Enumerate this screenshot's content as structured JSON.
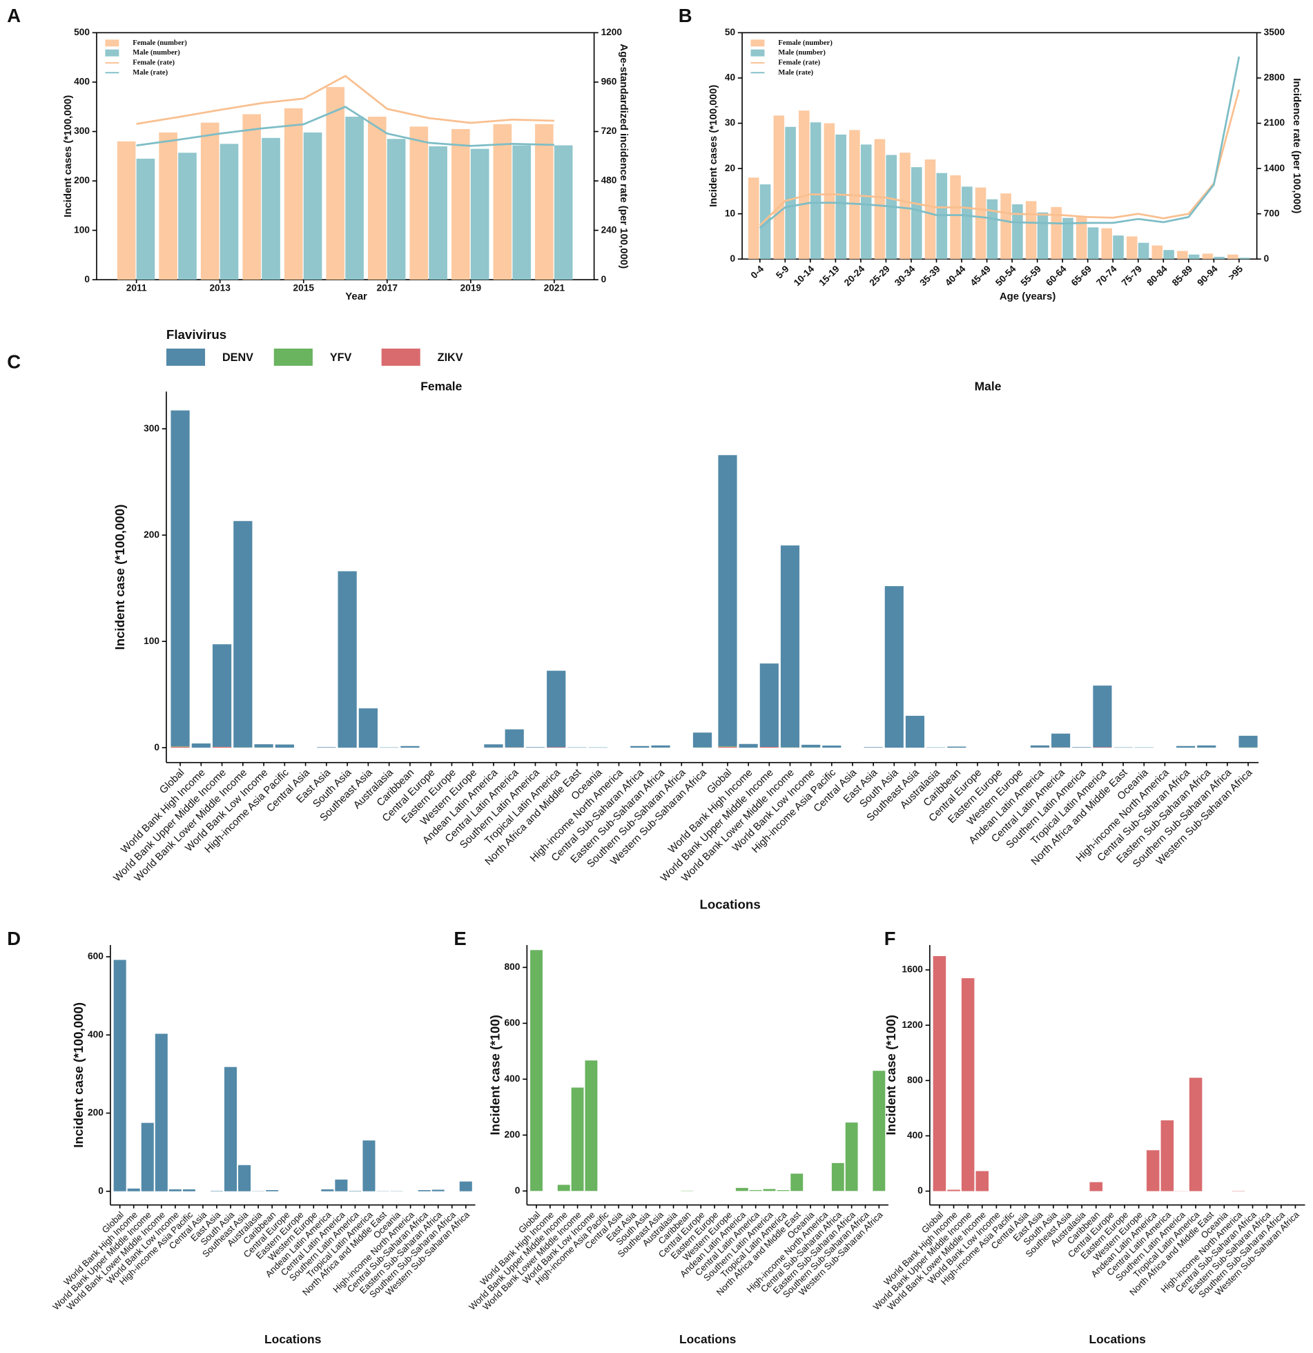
{
  "chart_data": [
    {
      "type": "bar_line",
      "panel": "A",
      "x_label": "Year",
      "y_label": "Incident cases (*100,000)",
      "y2_label": "Age-standardized incidence rate (per 100,000)",
      "categories": [
        2011,
        null,
        2013,
        null,
        2015,
        null,
        2017,
        null,
        2019,
        null,
        2021
      ],
      "ylim": [
        0,
        500
      ],
      "yticks": [
        0,
        100,
        200,
        300,
        400,
        500
      ],
      "y2lim": [
        0,
        1200
      ],
      "y2ticks": [
        0,
        240,
        480,
        720,
        960,
        1200
      ],
      "series": [
        {
          "name": "Female (number)",
          "color": "#fdc9a0",
          "values": [
            280,
            298,
            318,
            335,
            347,
            390,
            330,
            310,
            305,
            315,
            315
          ]
        },
        {
          "name": "Male (number)",
          "color": "#90c6cc",
          "values": [
            245,
            257,
            275,
            287,
            298,
            330,
            285,
            270,
            265,
            272,
            272
          ]
        },
        {
          "name": "Female (rate)",
          "color": "#f9bf8f",
          "axis": "y2",
          "values": [
            757,
            790,
            825,
            858,
            880,
            990,
            830,
            785,
            762,
            778,
            772
          ]
        },
        {
          "name": "Male (rate)",
          "color": "#7dbdc6",
          "axis": "y2",
          "values": [
            652,
            680,
            710,
            735,
            755,
            840,
            710,
            665,
            650,
            660,
            655
          ]
        }
      ]
    },
    {
      "type": "bar_line",
      "panel": "B",
      "x_label": "Age (years)",
      "y_label": "Incident cases (*100,000)",
      "y2_label": "Incidence rate (per 100,000)",
      "categories": [
        "0-4",
        "5-9",
        "10-14",
        "15-19",
        "20-24",
        "25-29",
        "30-34",
        "35-39",
        "40-44",
        "45-49",
        "50-54",
        "55-59",
        "60-64",
        "65-69",
        "70-74",
        "75-79",
        "80-84",
        "85-89",
        "90-94",
        ">95"
      ],
      "ylim": [
        0,
        50
      ],
      "yticks": [
        0,
        10,
        20,
        30,
        40,
        50
      ],
      "y2lim": [
        0,
        3500
      ],
      "y2ticks": [
        0,
        700,
        1400,
        2100,
        2800,
        3500
      ],
      "series": [
        {
          "name": "Female (number)",
          "color": "#fdc9a0",
          "values": [
            18,
            31.7,
            32.8,
            30,
            28.5,
            26.5,
            23.5,
            22,
            18.5,
            15.8,
            14.5,
            12.8,
            11.5,
            9.5,
            6.8,
            5,
            3,
            1.8,
            1.2,
            1
          ]
        },
        {
          "name": "Male (number)",
          "color": "#90c6cc",
          "values": [
            16.5,
            29.2,
            30.2,
            27.5,
            25.3,
            23,
            20.3,
            19,
            16,
            13.2,
            12.1,
            10.3,
            9.1,
            7,
            5.2,
            3.6,
            2,
            1,
            0.5,
            0.3
          ]
        },
        {
          "name": "Female (rate)",
          "color": "#f9bf8f",
          "axis": "y2",
          "values": [
            520,
            900,
            1000,
            1000,
            980,
            950,
            870,
            800,
            800,
            760,
            700,
            690,
            680,
            650,
            640,
            700,
            630,
            700,
            1170,
            2620
          ]
        },
        {
          "name": "Male (rate)",
          "color": "#7dbdc6",
          "axis": "y2",
          "values": [
            480,
            800,
            870,
            870,
            850,
            820,
            780,
            680,
            680,
            640,
            570,
            560,
            550,
            560,
            560,
            620,
            570,
            650,
            1150,
            3130
          ]
        }
      ]
    },
    {
      "type": "stacked_bar",
      "panel": "C",
      "legend_title": "Flavivirus",
      "x_label": "Locations",
      "y_label": "Incident case (*100,000)",
      "facets": [
        "Female",
        "Male"
      ],
      "categories": [
        "Global",
        "World Bank High Income",
        "World Bank Upper Middle Income",
        "World Bank Lower Middle Income",
        "World Bank Low Income",
        "High-income Asia Pacific",
        "Central Asia",
        "East Asia",
        "South Asia",
        "Southeast Asia",
        "Australasia",
        "Caribbean",
        "Central Europe",
        "Eastern Europe",
        "Western Europe",
        "Andean Latin America",
        "Central Latin America",
        "Southern Latin America",
        "Tropical Latin America",
        "North Africa and Middle East",
        "Oceania",
        "High-income North America",
        "Central Sub-Saharan Africa",
        "Eastern Sub-Saharan Africa",
        "Southern Sub-Saharan Africa",
        "Western Sub-Saharan Africa"
      ],
      "ylim": [
        -14,
        335
      ],
      "yticks": [
        0,
        100,
        200,
        300
      ],
      "series": [
        {
          "name": "DENV",
          "color": "#5289a8",
          "values": [
            [
              316,
              4,
              96.5,
              213,
              3,
              3,
              0,
              0.5,
              166,
              37,
              0.3,
              1.5,
              0,
              0,
              0,
              3,
              17,
              0.5,
              72,
              0.3,
              0.3,
              0,
              1.5,
              2,
              0,
              14
            ],
            [
              274,
              3.5,
              78.5,
              190,
              2.5,
              2,
              0,
              0.5,
              152,
              30,
              0.3,
              1,
              0,
              0,
              0,
              2,
              13,
              0.5,
              58,
              0.3,
              0.3,
              0,
              1.5,
              2,
              0,
              11
            ]
          ]
        },
        {
          "name": "YFV",
          "color": "#6ab35f",
          "values": [
            [
              0.4,
              0,
              0.01,
              0.18,
              0.23,
              0,
              0,
              0,
              0,
              0,
              0,
              0,
              0,
              0,
              0,
              0.005,
              0,
              0,
              0,
              0.03,
              0,
              0,
              0.05,
              0.12,
              0,
              0.2
            ],
            [
              0.45,
              0,
              0.01,
              0.19,
              0.24,
              0,
              0,
              0,
              0,
              0,
              0,
              0,
              0,
              0,
              0,
              0.006,
              0,
              0,
              0,
              0.03,
              0,
              0,
              0.05,
              0.12,
              0,
              0.22
            ]
          ]
        },
        {
          "name": "ZIKV",
          "color": "#d96b6e",
          "values": [
            [
              0.9,
              0,
              0.8,
              0.07,
              0,
              0,
              0,
              0,
              0,
              0,
              0,
              0.03,
              0,
              0,
              0,
              0.15,
              0.25,
              0,
              0.4,
              0,
              0,
              0,
              0,
              0,
              0,
              0
            ],
            [
              0.8,
              0,
              0.7,
              0.07,
              0,
              0,
              0,
              0,
              0,
              0,
              0,
              0.03,
              0,
              0,
              0,
              0.14,
              0.26,
              0,
              0.42,
              0,
              0,
              0,
              0,
              0,
              0,
              0
            ]
          ]
        }
      ]
    },
    {
      "type": "bar",
      "panel": "D",
      "x_label": "Locations",
      "y_label": "Incident case (*100,000)",
      "color": "#5289a8",
      "categories": [
        "Global",
        "World Bank High Income",
        "World Bank Upper Middle Income",
        "World Bank Lower Middle Income",
        "World Bank Low Income",
        "High-income Asia Pacific",
        "Central Asia",
        "East Asia",
        "South Asia",
        "Southeast Asia",
        "Australasia",
        "Caribbean",
        "Central Europe",
        "Eastern Europe",
        "Western Europe",
        "Andean Latin America",
        "Central Latin America",
        "Southern Latin America",
        "Tropical Latin America",
        "North Africa and Middle East",
        "Oceania",
        "High-income North America",
        "Central Sub-Saharan Africa",
        "Eastern Sub-Saharan Africa",
        "Southern Sub-Saharan Africa",
        "Western Sub-Saharan Africa"
      ],
      "ylim": [
        -35,
        630
      ],
      "yticks": [
        0,
        200,
        400,
        600
      ],
      "values": [
        592,
        7,
        175,
        403,
        5,
        5,
        0,
        1,
        318,
        67,
        0.5,
        3,
        0,
        0,
        0,
        5,
        30,
        1,
        130,
        0.5,
        0.5,
        0,
        3,
        4,
        0,
        25
      ]
    },
    {
      "type": "bar",
      "panel": "E",
      "x_label": "Locations",
      "y_label": "Incident case (*100)",
      "color": "#6ab35f",
      "categories": [
        "Global",
        "World Bank High Income",
        "World Bank Upper Middle Income",
        "World Bank Lower Middle Income",
        "World Bank Low Income",
        "High-income Asia Pacific",
        "Central Asia",
        "East Asia",
        "South Asia",
        "Southeast Asia",
        "Australasia",
        "Caribbean",
        "Central Europe",
        "Eastern Europe",
        "Western Europe",
        "Andean Latin America",
        "Central Latin America",
        "Southern Latin America",
        "Tropical Latin America",
        "North Africa and Middle East",
        "Oceania",
        "High-income North America",
        "Central Sub-Saharan Africa",
        "Eastern Sub-Saharan Africa",
        "Southern Sub-Saharan Africa",
        "Western Sub-Saharan Africa"
      ],
      "ylim": [
        -50,
        880
      ],
      "yticks": [
        0,
        200,
        400,
        600,
        800
      ],
      "values": [
        862,
        0,
        22,
        370,
        467,
        0,
        0,
        0,
        0,
        0,
        0,
        1,
        0,
        0,
        0,
        11,
        3,
        7,
        3,
        62,
        0,
        0,
        100,
        245,
        0,
        430
      ]
    },
    {
      "type": "bar",
      "panel": "F",
      "x_label": "Locations",
      "y_label": "Incident case (*100)",
      "color": "#d96b6e",
      "categories": [
        "Global",
        "World Bank High Income",
        "World Bank Upper Middle Income",
        "World Bank Lower Middle Income",
        "World Bank Low Income",
        "High-income Asia Pacific",
        "Central Asia",
        "East Asia",
        "South Asia",
        "Southeast Asia",
        "Australasia",
        "Caribbean",
        "Central Europe",
        "Eastern Europe",
        "Western Europe",
        "Andean Latin America",
        "Central Latin America",
        "Southern Latin America",
        "Tropical Latin America",
        "North Africa and Middle East",
        "Oceania",
        "High-income North America",
        "Central Sub-Saharan Africa",
        "Eastern Sub-Saharan Africa",
        "Southern Sub-Saharan Africa",
        "Western Sub-Saharan Africa"
      ],
      "ylim": [
        -100,
        1780
      ],
      "yticks": [
        0,
        400,
        800,
        1200,
        1600
      ],
      "values": [
        1700,
        10,
        1540,
        145,
        0,
        0,
        0,
        0,
        0,
        0,
        0,
        65,
        0,
        0,
        0,
        296,
        512,
        1,
        820,
        0,
        0,
        2,
        0,
        0,
        0,
        0
      ]
    }
  ]
}
